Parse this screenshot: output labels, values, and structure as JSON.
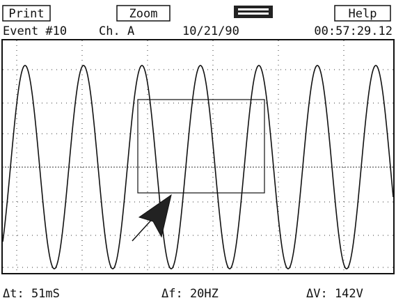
{
  "menu": {
    "buttons": [
      "Print",
      "Zoom",
      "Help"
    ]
  },
  "status": {
    "event": "Event #10",
    "channel": "Ch. A",
    "date": "10/21/90",
    "time": "00:57:29.12"
  },
  "readout": {
    "delta_t": "Δt: 51mS",
    "delta_f": "Δf: 20HZ",
    "delta_v": "ΔV: 142V"
  }
}
